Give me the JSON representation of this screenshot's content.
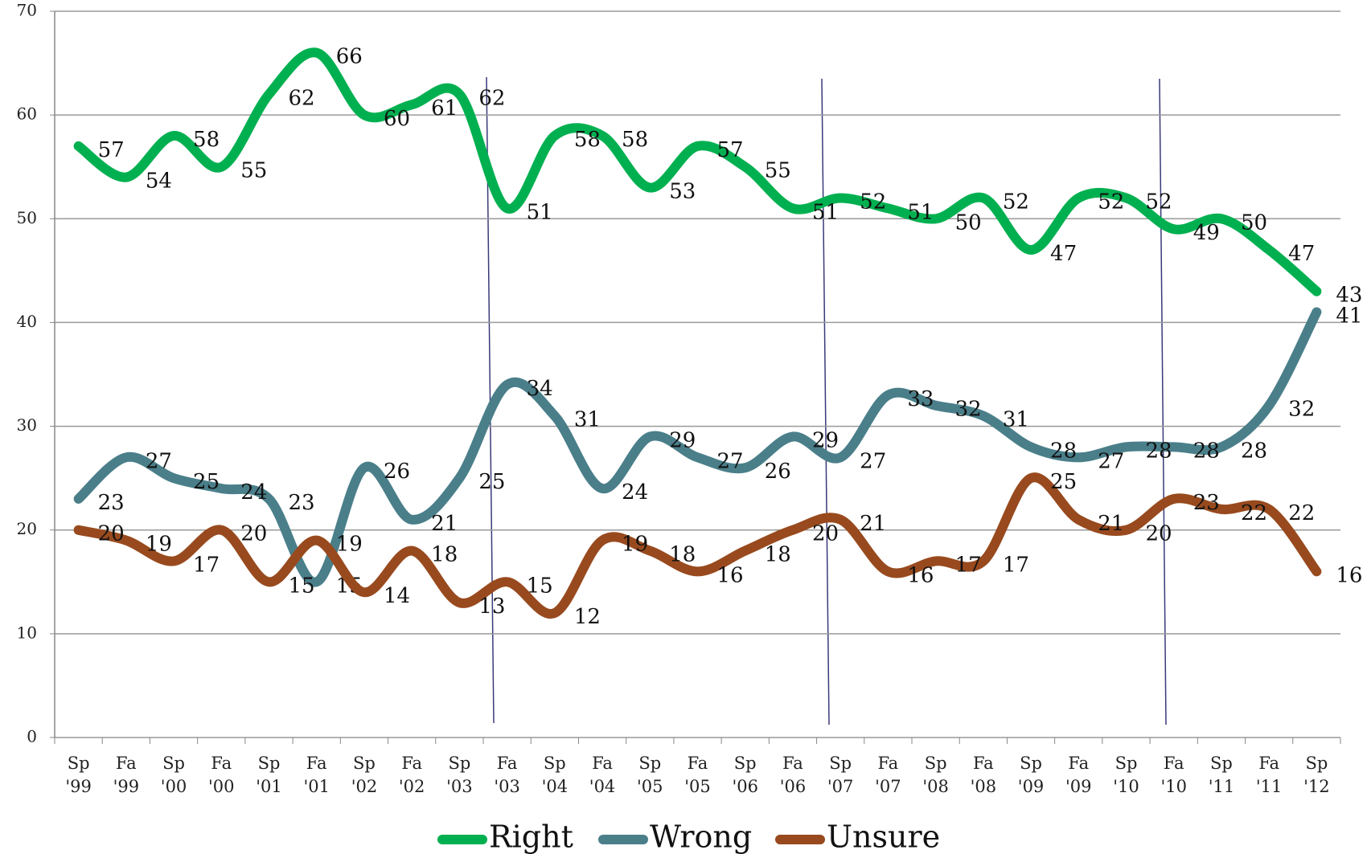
{
  "chart_data": {
    "type": "line",
    "categories": [
      "Sp '99",
      "Fa '99",
      "Sp '00",
      "Fa '00",
      "Sp '01",
      "Fa '01",
      "Sp '02",
      "Fa '02",
      "Sp '03",
      "Fa '03",
      "Sp '04",
      "Fa '04",
      "Sp '05",
      "Fa '05",
      "Sp '06",
      "Fa '06",
      "Sp '07",
      "Fa '07",
      "Sp '08",
      "Fa '08",
      "Sp '09",
      "Fa '09",
      "Sp '10",
      "Fa '10",
      "Sp '11",
      "Fa '11",
      "Sp '12"
    ],
    "series": [
      {
        "name": "Right",
        "color": "#00b050",
        "values": [
          57,
          54,
          58,
          55,
          62,
          66,
          60,
          61,
          62,
          51,
          58,
          58,
          53,
          57,
          55,
          51,
          52,
          51,
          50,
          52,
          47,
          52,
          52,
          49,
          50,
          47,
          43
        ]
      },
      {
        "name": "Wrong",
        "color": "#4a7f8a",
        "values": [
          23,
          27,
          25,
          24,
          23,
          15,
          26,
          21,
          25,
          34,
          31,
          24,
          29,
          27,
          26,
          29,
          27,
          33,
          32,
          31,
          28,
          27,
          28,
          28,
          28,
          32,
          41
        ]
      },
      {
        "name": "Unsure",
        "color": "#984a1e",
        "values": [
          20,
          19,
          17,
          20,
          15,
          19,
          14,
          18,
          13,
          15,
          12,
          19,
          18,
          16,
          18,
          20,
          21,
          16,
          17,
          17,
          25,
          21,
          20,
          23,
          22,
          22,
          16
        ]
      }
    ],
    "ylim": [
      0,
      70
    ],
    "yticks": [
      0,
      10,
      20,
      30,
      40,
      50,
      60,
      70
    ],
    "grid": true,
    "legend": "bottom"
  }
}
